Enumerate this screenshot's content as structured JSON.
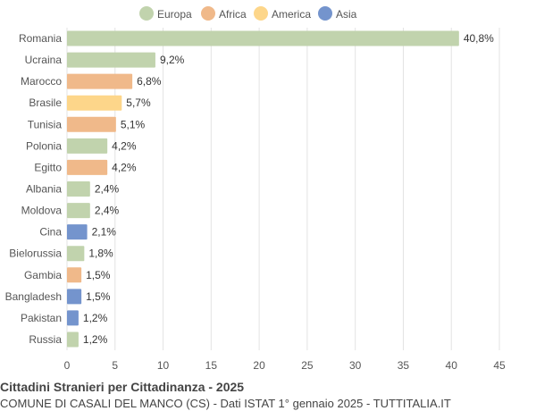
{
  "chart_data": {
    "type": "bar",
    "orientation": "horizontal",
    "title": "Cittadini Stranieri per Cittadinanza - 2025",
    "subtitle": "COMUNE DI CASALI DEL MANCO (CS) - Dati ISTAT 1° gennaio 2025 - TUTTITALIA.IT",
    "legend": {
      "placement": "top-center",
      "entries": [
        {
          "name": "Europa",
          "color": "#c1d3ad"
        },
        {
          "name": "Africa",
          "color": "#f0b98a"
        },
        {
          "name": "America",
          "color": "#fdd68a"
        },
        {
          "name": "Asia",
          "color": "#7494cd"
        }
      ]
    },
    "categories": [
      "Romania",
      "Ucraina",
      "Marocco",
      "Brasile",
      "Tunisia",
      "Polonia",
      "Egitto",
      "Albania",
      "Moldova",
      "Cina",
      "Bielorussia",
      "Gambia",
      "Bangladesh",
      "Pakistan",
      "Russia"
    ],
    "values": [
      40.8,
      9.2,
      6.8,
      5.7,
      5.1,
      4.2,
      4.2,
      2.4,
      2.4,
      2.1,
      1.8,
      1.5,
      1.5,
      1.2,
      1.2
    ],
    "value_labels": [
      "40,8%",
      "9,2%",
      "6,8%",
      "5,7%",
      "5,1%",
      "4,2%",
      "4,2%",
      "2,4%",
      "2,4%",
      "2,1%",
      "1,8%",
      "1,5%",
      "1,5%",
      "1,2%",
      "1,2%"
    ],
    "groups": [
      "Europa",
      "Europa",
      "Africa",
      "America",
      "Africa",
      "Europa",
      "Africa",
      "Europa",
      "Europa",
      "Asia",
      "Europa",
      "Africa",
      "Asia",
      "Asia",
      "Europa"
    ],
    "xlim": [
      0,
      45
    ],
    "xticks": [
      0,
      5,
      10,
      15,
      20,
      25,
      30,
      35,
      40,
      45
    ],
    "grid": "vertical"
  }
}
